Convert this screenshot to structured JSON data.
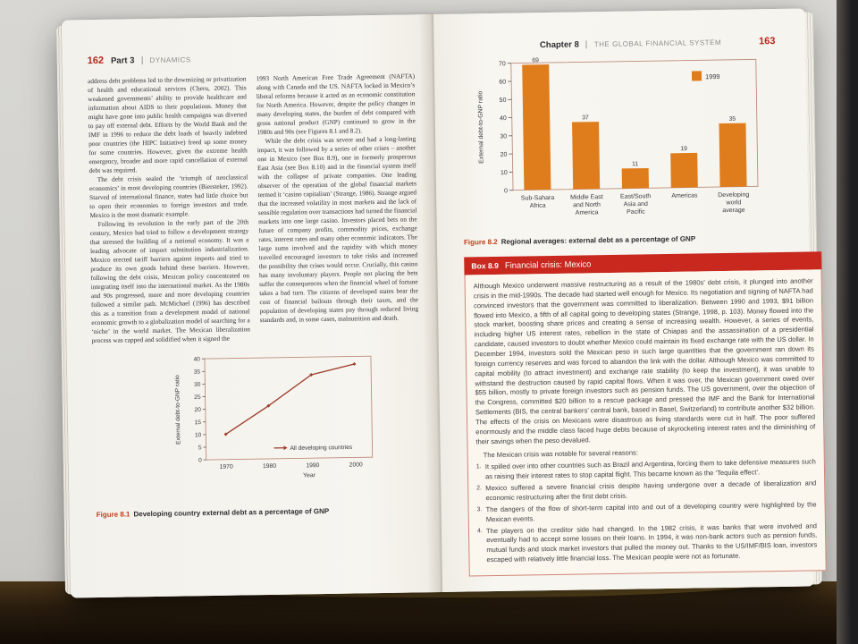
{
  "colors": {
    "accent_red": "#c8281e",
    "figure_label_red": "#c2401c",
    "bar_orange": "#df7d1d",
    "line_red": "#9e3b2a"
  },
  "left_page": {
    "page_number": "162",
    "part_label": "Part 3",
    "part_title": "DYNAMICS",
    "col1_paragraphs": [
      "address debt problems led to the downsizing or privatization of health and educational services (Cheru, 2002). This weakened governments’ ability to provide healthcare and information about AIDS to their populations. Money that might have gone into public health campaigns was diverted to pay off external debt. Efforts by the World Bank and the IMF in 1996 to reduce the debt loads of heavily indebted poor countries (the HIPC Initiative) freed up some money for some countries. However, given the extreme health emergency, broader and more rapid cancellation of external debt was required.",
      "The debt crisis sealed the ‘triumph of neoclassical economics’ in most developing countries (Biersteker, 1992). Starved of international finance, states had little choice but to open their economies to foreign investors and trade. Mexico is the most dramatic example.",
      "Following its revolution in the early part of the 20th century, Mexico had tried to follow a development strategy that stressed the building of a national economy. It was a leading advocate of import substitution industrialization. Mexico erected tariff barriers against imports and tried to produce its own goods behind these barriers. However, following the debt crisis, Mexican policy concentrated on integrating itself into the international market. As the 1980s and 90s progressed, more and more developing countries followed a similar path. McMichael (1996) has described this as a transition from a development model of national economic growth to a globalization model of searching for a ‘niche’ in the world market. The Mexican liberalization process was capped and solidified when it signed the"
    ],
    "col2_paragraphs": [
      "1993 North American Free Trade Agreement (NAFTA) along with Canada and the US. NAFTA locked in Mexico’s liberal reforms because it acted as an economic constitution for North America. However, despite the policy changes in many developing states, the burden of debt compared with gross national product (GNP) continued to grow in the 1980s and 90s (see Figures 8.1 and 8.2).",
      "While the debt crisis was severe and had a long-lasting impact, it was followed by a series of other crises – another one in Mexico (see Box 8.9), one in formerly prosperous East Asia (see Box 8.10) and in the financial system itself with the collapse of private companies. One leading observer of the operation of the global financial markets termed it ‘casino capitalism’ (Strange, 1986). Strange argued that the increased volatility in most markets and the lack of sensible regulation over transactions had turned the financial markets into one large casino. Investors placed bets on the future of company profits, commodity prices, exchange rates, interest rates and many other economic indicators. The large sums involved and the rapidity with which money travelled encouraged investors to take risks and increased the possibility that crises would occur. Crucially, this casino has many involuntary players. People not placing the bets suffer the consequences when the financial wheel of fortune takes a bad turn. The citizens of developed states bear the cost of financial bailouts through their taxes, and the population of developing states pay through reduced living standards and, in some cases, malnutrition and death."
    ],
    "figure_caption_label": "Figure 8.1",
    "figure_caption_text": "Developing country external debt as a percentage of GNP"
  },
  "right_page": {
    "chapter_label": "Chapter 8",
    "chapter_title": "THE GLOBAL FINANCIAL SYSTEM",
    "page_number": "163",
    "figure_caption_label": "Figure 8.2",
    "figure_caption_text": "Regional averages: external debt as a percentage of GNP",
    "box": {
      "label": "Box 8.9",
      "title": "Financial crisis: Mexico",
      "paragraphs": [
        "Although Mexico underwent massive restructuring as a result of the 1980s’ debt crisis, it plunged into another crisis in the mid-1990s. The decade had started well enough for Mexico. Its negotiation and signing of NAFTA had convinced investors that the government was committed to liberalization. Between 1990 and 1993, $91 billion flowed into Mexico, a fifth of all capital going to developing states (Strange, 1998, p. 103). Money flowed into the stock market, boosting share prices and creating a sense of increasing wealth. However, a series of events, including higher US interest rates, rebellion in the state of Chiapas and the assassination of a presidential candidate, caused investors to doubt whether Mexico could maintain its fixed exchange rate with the US dollar. In December 1994, investors sold the Mexican peso in such large quantities that the government ran down its foreign currency reserves and was forced to abandon the link with the dollar. Although Mexico was committed to capital mobility (to attract investment) and exchange rate stability (to keep the investment), it was unable to withstand the destruction caused by rapid capital flows. When it was over, the Mexican government owed over $55 billion, mostly to private foreign investors such as pension funds. The US government, over the objection of the Congress, committed $20 billion to a rescue package and pressed the IMF and the Bank for International Settlements (BIS, the central bankers’ central bank, based in Basel, Switzerland) to contribute another $32 billion. The effects of the crisis on Mexicans were disastrous as living standards were cut in half. The poor suffered enormously and the middle class faced huge debts because of skyrocketing interest rates and the diminishing of their savings when the peso devalued."
      ],
      "lead_in": "The Mexican crisis was notable for several reasons:",
      "list": [
        "It spilled over into other countries such as Brazil and Argentina, forcing them to take defensive measures such as raising their interest rates to stop capital flight. This became known as the ‘Tequila effect’.",
        "Mexico suffered a severe financial crisis despite having undergone over a decade of liberalization and economic restructuring after the first debt crisis.",
        "The dangers of the flow of short-term capital into and out of a developing country were highlighted by the Mexican events.",
        "The players on the creditor side had changed. In the 1982 crisis, it was banks that were involved and eventually had to accept some losses on their loans. In 1994, it was non-bank actors such as pension funds, mutual funds and stock market investors that pulled the money out. Thanks to the US/IMF/BIS loan, investors escaped with relatively little financial loss. The Mexican people were not as fortunate."
      ]
    }
  },
  "chart_data": [
    {
      "id": "figure-8-1",
      "type": "line",
      "x": [
        1970,
        1980,
        1990,
        2000
      ],
      "series": [
        {
          "name": "All developing countries",
          "values": [
            10,
            21,
            33,
            37
          ]
        }
      ],
      "xlabel": "Year",
      "ylabel": "External debt-to-GNP ratio",
      "ylim": [
        0,
        40
      ],
      "yticks": [
        0,
        5,
        10,
        15,
        20,
        25,
        30,
        35,
        40
      ],
      "legend_position": "inside-bottom-right",
      "line_color": "#9e3b2a",
      "grid": false
    },
    {
      "id": "figure-8-2",
      "type": "bar",
      "categories": [
        "Sub-Sahara Africa",
        "Middle East and North America",
        "East/South Asia and Pacific",
        "Americas",
        "Developing world average"
      ],
      "label_lines": [
        [
          "Sub-Sahara",
          "Africa"
        ],
        [
          "Middle East",
          "and North",
          "America"
        ],
        [
          "East/South",
          "Asia and",
          "Pacific"
        ],
        [
          "Americas"
        ],
        [
          "Developing",
          "world",
          "average"
        ]
      ],
      "values": [
        69,
        37,
        11,
        19,
        35
      ],
      "value_labels": [
        "69",
        "37",
        "11",
        "19",
        "35"
      ],
      "legend": "1999",
      "ylabel": "External debt-to-GNP ratio",
      "ylim": [
        0,
        70
      ],
      "yticks": [
        0,
        10,
        20,
        30,
        40,
        50,
        60,
        70
      ],
      "legend_position": "inside-top-right",
      "bar_color": "#df7d1d",
      "grid": false
    }
  ]
}
